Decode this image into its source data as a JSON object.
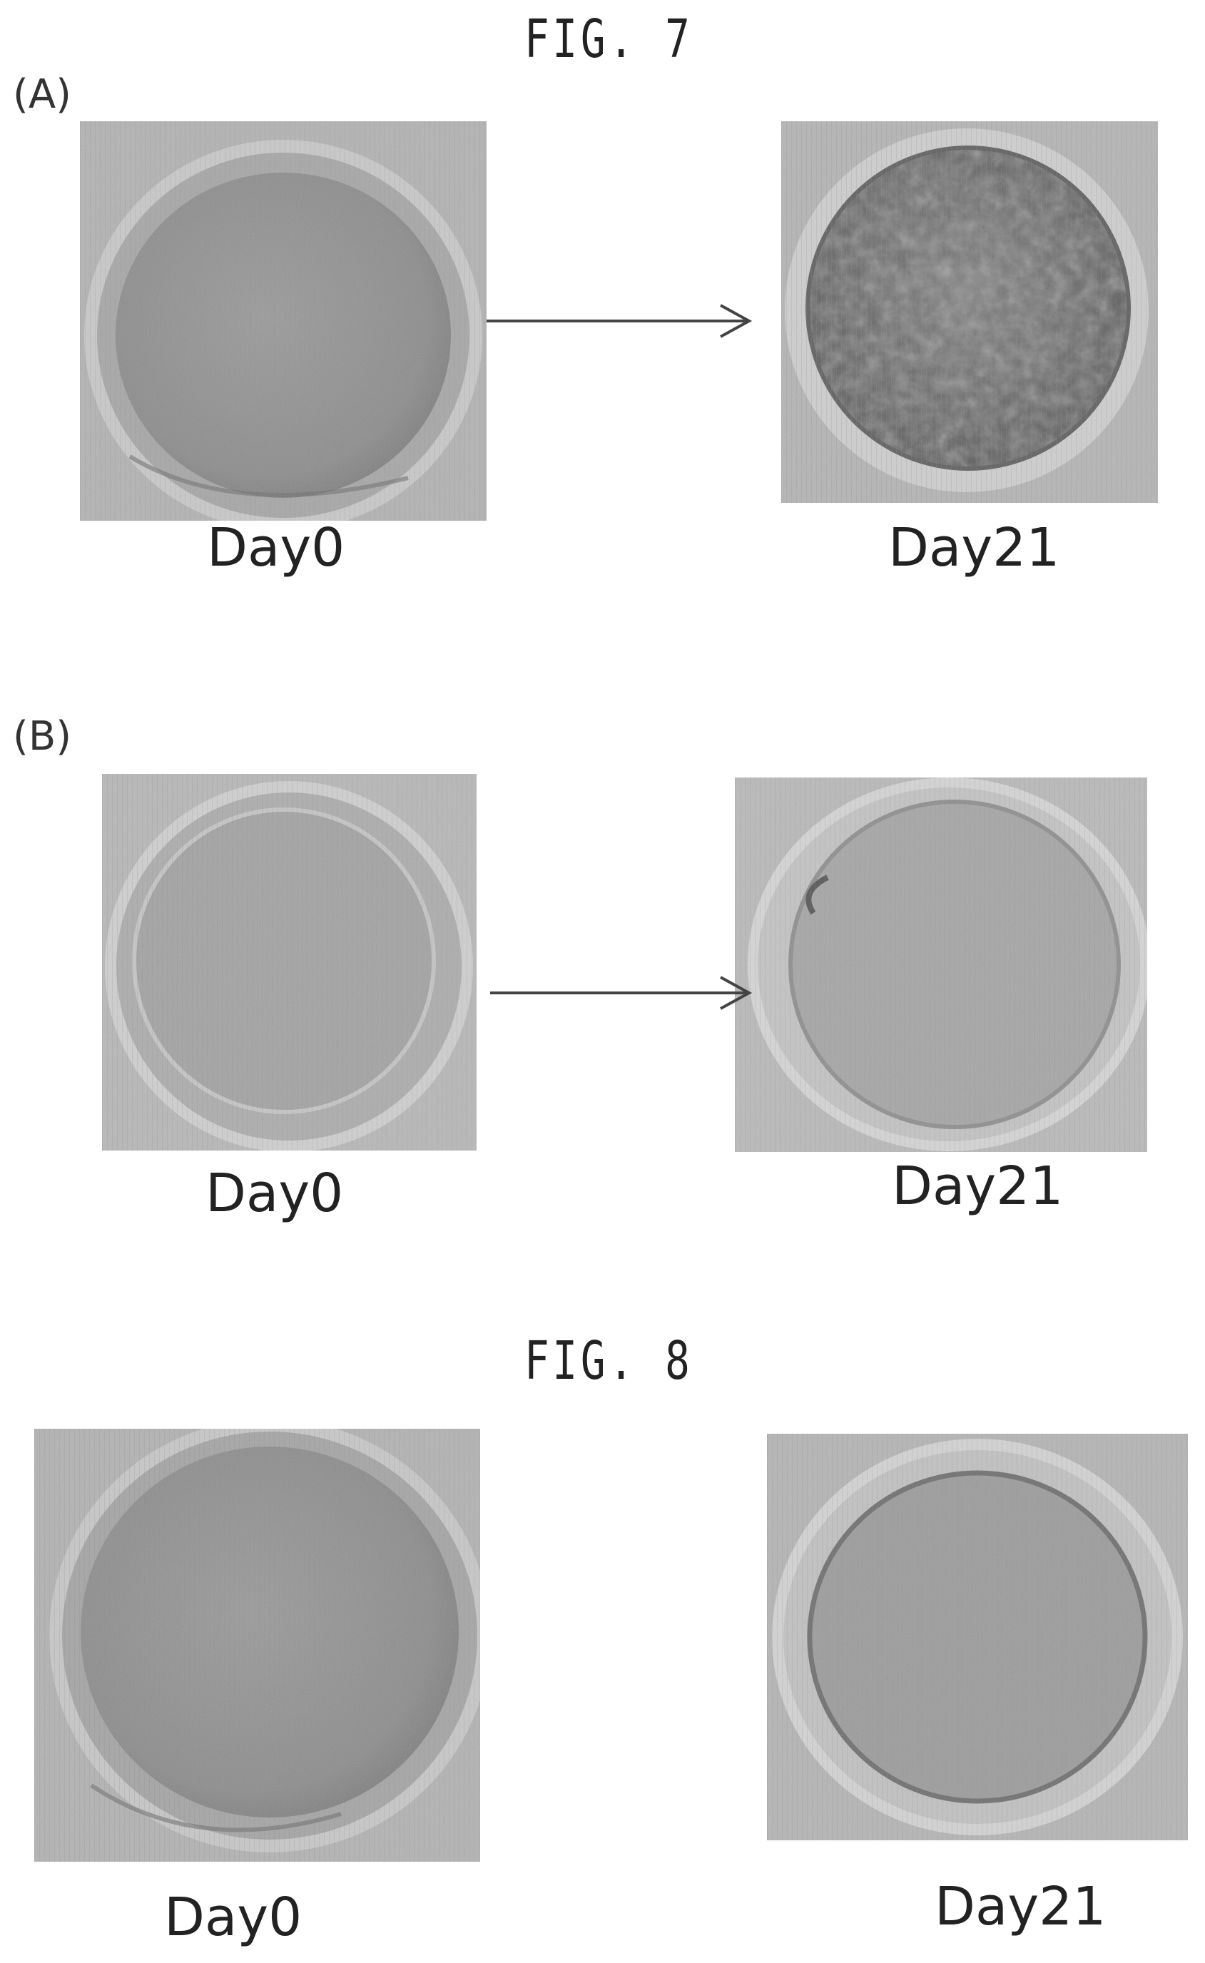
{
  "figures": [
    {
      "title": "FIG. 7",
      "panels": [
        {
          "label": "(A)",
          "images": [
            {
              "caption": "Day0",
              "style": "smooth"
            },
            {
              "caption": "Day21",
              "style": "textured"
            }
          ]
        },
        {
          "label": "(B)",
          "images": [
            {
              "caption": "Day0",
              "style": "smooth"
            },
            {
              "caption": "Day21",
              "style": "smooth"
            }
          ]
        }
      ]
    },
    {
      "title": "FIG. 8",
      "images": [
        {
          "caption": "Day0",
          "style": "smooth"
        },
        {
          "caption": "Day21",
          "style": "smooth"
        }
      ]
    }
  ]
}
